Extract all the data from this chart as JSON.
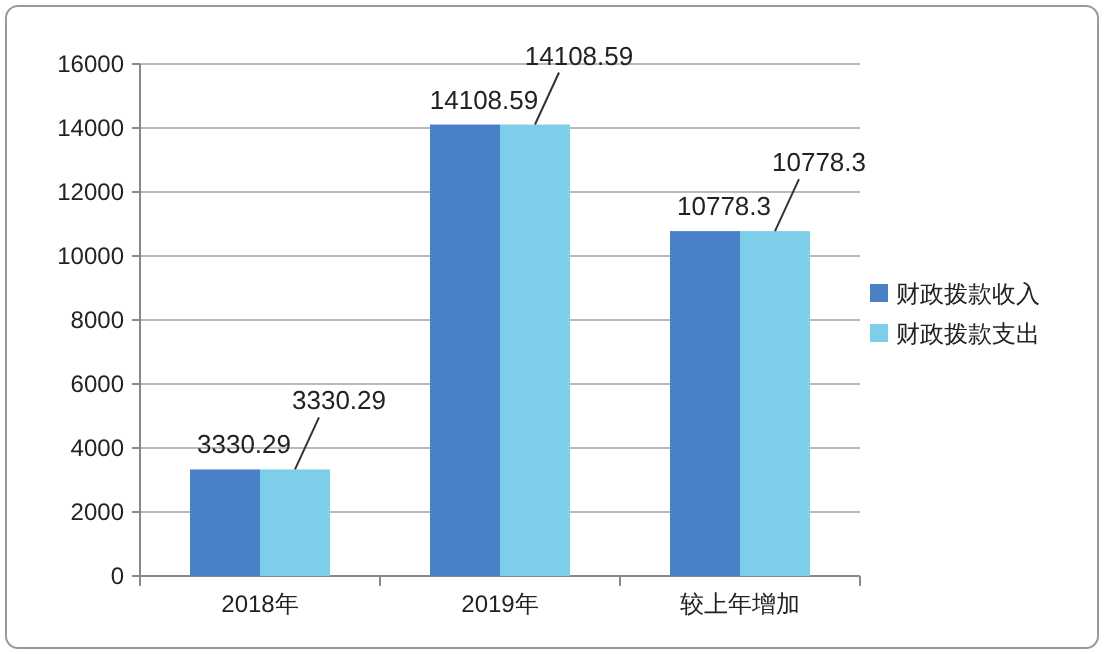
{
  "chart_data": {
    "type": "bar",
    "categories": [
      "2018年",
      "2019年",
      "较上年增加"
    ],
    "series": [
      {
        "name": "财政拨款收入",
        "color": "#4a80c6",
        "values": [
          3330.29,
          14108.59,
          10778.3
        ]
      },
      {
        "name": "财政拨款支出",
        "color": "#7dcfe9",
        "values": [
          3330.29,
          14108.59,
          10778.3
        ]
      }
    ],
    "ylim": [
      0,
      16000
    ],
    "yticks": [
      0,
      2000,
      4000,
      6000,
      8000,
      10000,
      12000,
      14000,
      16000
    ],
    "grid": "y",
    "legend": "right",
    "data_labels": true
  }
}
